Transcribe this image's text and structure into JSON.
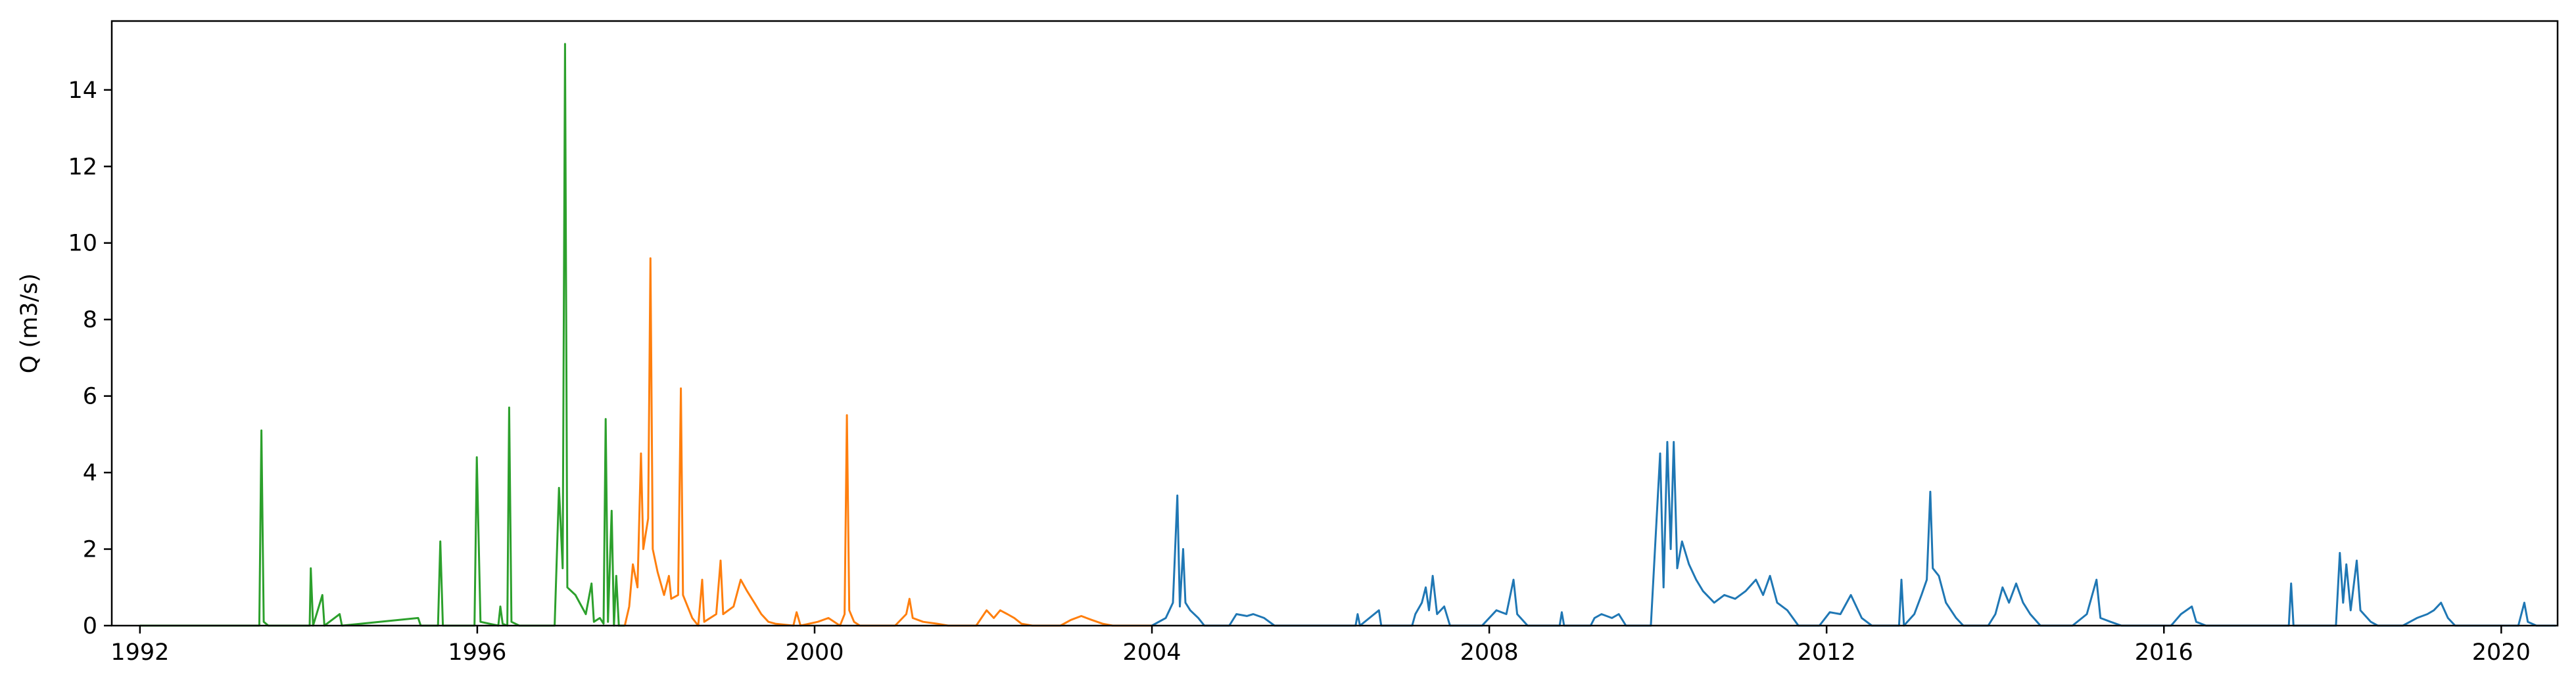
{
  "chart_data": {
    "type": "line",
    "title": "",
    "xlabel": "",
    "ylabel": "Q (m3/s)",
    "xlim": [
      "1991-09-01",
      "2020-09-01"
    ],
    "ylim": [
      0,
      15.8
    ],
    "x_ticks": [
      "1992",
      "1996",
      "2000",
      "2004",
      "2008",
      "2012",
      "2016",
      "2020"
    ],
    "y_ticks": [
      "0",
      "2",
      "4",
      "6",
      "8",
      "10",
      "12",
      "14"
    ],
    "y_tick_values": [
      0,
      2,
      4,
      6,
      8,
      10,
      12,
      14
    ],
    "grid": false,
    "legend": "none",
    "series": [
      {
        "color": "#2ca02c",
        "points": [
          [
            "1992-01-01",
            0.0
          ],
          [
            "1993-06-01",
            0.0
          ],
          [
            "1993-06-10",
            5.1
          ],
          [
            "1993-06-20",
            0.1
          ],
          [
            "1993-07-10",
            0.0
          ],
          [
            "1994-01-05",
            0.0
          ],
          [
            "1994-01-10",
            1.5
          ],
          [
            "1994-01-20",
            0.0
          ],
          [
            "1994-03-01",
            0.8
          ],
          [
            "1994-03-10",
            0.0
          ],
          [
            "1994-05-15",
            0.3
          ],
          [
            "1994-05-25",
            0.0
          ],
          [
            "1995-04-20",
            0.2
          ],
          [
            "1995-05-01",
            0.0
          ],
          [
            "1995-07-15",
            0.0
          ],
          [
            "1995-07-25",
            2.2
          ],
          [
            "1995-08-05",
            0.0
          ],
          [
            "1995-12-20",
            0.0
          ],
          [
            "1995-12-30",
            4.4
          ],
          [
            "1996-01-15",
            0.1
          ],
          [
            "1996-04-01",
            0.0
          ],
          [
            "1996-04-10",
            0.5
          ],
          [
            "1996-04-20",
            0.05
          ],
          [
            "1996-05-10",
            0.0
          ],
          [
            "1996-05-18",
            5.7
          ],
          [
            "1996-05-28",
            0.1
          ],
          [
            "1996-07-01",
            0.0
          ],
          [
            "1996-12-01",
            0.0
          ],
          [
            "1996-12-20",
            3.6
          ],
          [
            "1997-01-05",
            1.5
          ],
          [
            "1997-01-15",
            15.2
          ],
          [
            "1997-01-25",
            1.0
          ],
          [
            "1997-03-01",
            0.8
          ],
          [
            "1997-04-15",
            0.3
          ],
          [
            "1997-05-10",
            1.1
          ],
          [
            "1997-05-20",
            0.1
          ],
          [
            "1997-06-15",
            0.2
          ],
          [
            "1997-07-01",
            0.05
          ],
          [
            "1997-07-10",
            5.4
          ],
          [
            "1997-07-20",
            0.1
          ],
          [
            "1997-08-05",
            3.0
          ],
          [
            "1997-08-15",
            0.0
          ],
          [
            "1997-08-25",
            1.3
          ],
          [
            "1997-09-05",
            0.0
          ],
          [
            "1997-10-01",
            0.0
          ]
        ]
      },
      {
        "color": "#ff7f0e",
        "points": [
          [
            "1997-10-01",
            0.0
          ],
          [
            "1997-10-20",
            0.5
          ],
          [
            "1997-11-05",
            1.6
          ],
          [
            "1997-11-25",
            1.0
          ],
          [
            "1997-12-10",
            4.5
          ],
          [
            "1997-12-20",
            2.0
          ],
          [
            "1998-01-10",
            2.8
          ],
          [
            "1998-01-20",
            9.6
          ],
          [
            "1998-01-30",
            2.0
          ],
          [
            "1998-02-20",
            1.4
          ],
          [
            "1998-03-20",
            0.8
          ],
          [
            "1998-04-10",
            1.3
          ],
          [
            "1998-04-20",
            0.7
          ],
          [
            "1998-05-20",
            0.8
          ],
          [
            "1998-06-01",
            6.2
          ],
          [
            "1998-06-10",
            0.8
          ],
          [
            "1998-07-20",
            0.2
          ],
          [
            "1998-08-15",
            0.0
          ],
          [
            "1998-09-01",
            1.2
          ],
          [
            "1998-09-10",
            0.1
          ],
          [
            "1998-11-01",
            0.3
          ],
          [
            "1998-11-20",
            1.7
          ],
          [
            "1998-12-01",
            0.3
          ],
          [
            "1999-01-15",
            0.5
          ],
          [
            "1999-02-15",
            1.2
          ],
          [
            "1999-03-15",
            0.9
          ],
          [
            "1999-04-15",
            0.6
          ],
          [
            "1999-05-15",
            0.3
          ],
          [
            "1999-06-15",
            0.1
          ],
          [
            "1999-07-15",
            0.05
          ],
          [
            "1999-10-01",
            0.0
          ],
          [
            "1999-10-15",
            0.35
          ],
          [
            "1999-11-01",
            0.0
          ],
          [
            "2000-01-15",
            0.1
          ],
          [
            "2000-03-01",
            0.2
          ],
          [
            "2000-04-20",
            0.0
          ],
          [
            "2000-05-10",
            0.3
          ],
          [
            "2000-05-20",
            5.5
          ],
          [
            "2000-05-30",
            0.4
          ],
          [
            "2000-06-20",
            0.1
          ],
          [
            "2000-07-15",
            0.0
          ],
          [
            "2000-12-15",
            0.0
          ],
          [
            "2001-02-01",
            0.3
          ],
          [
            "2001-02-15",
            0.7
          ],
          [
            "2001-03-01",
            0.2
          ],
          [
            "2001-04-15",
            0.1
          ],
          [
            "2001-06-15",
            0.05
          ],
          [
            "2001-08-01",
            0.0
          ],
          [
            "2001-12-01",
            0.0
          ],
          [
            "2002-01-15",
            0.4
          ],
          [
            "2002-02-15",
            0.2
          ],
          [
            "2002-03-15",
            0.4
          ],
          [
            "2002-04-15",
            0.3
          ],
          [
            "2002-05-15",
            0.2
          ],
          [
            "2002-06-15",
            0.05
          ],
          [
            "2002-08-01",
            0.0
          ],
          [
            "2002-12-01",
            0.0
          ],
          [
            "2003-01-15",
            0.15
          ],
          [
            "2003-03-01",
            0.25
          ],
          [
            "2003-04-15",
            0.15
          ],
          [
            "2003-06-01",
            0.05
          ],
          [
            "2003-07-15",
            0.0
          ],
          [
            "2004-01-01",
            0.0
          ]
        ]
      },
      {
        "color": "#1f77b4",
        "points": [
          [
            "2004-01-01",
            0.0
          ],
          [
            "2004-03-01",
            0.2
          ],
          [
            "2004-04-01",
            0.6
          ],
          [
            "2004-04-20",
            3.4
          ],
          [
            "2004-05-01",
            0.5
          ],
          [
            "2004-05-15",
            2.0
          ],
          [
            "2004-05-25",
            0.6
          ],
          [
            "2004-06-15",
            0.4
          ],
          [
            "2004-07-20",
            0.2
          ],
          [
            "2004-08-15",
            0.0
          ],
          [
            "2004-12-01",
            0.0
          ],
          [
            "2005-01-01",
            0.3
          ],
          [
            "2005-02-15",
            0.25
          ],
          [
            "2005-03-15",
            0.3
          ],
          [
            "2005-05-01",
            0.2
          ],
          [
            "2005-06-15",
            0.0
          ],
          [
            "2006-06-01",
            0.0
          ],
          [
            "2006-06-10",
            0.3
          ],
          [
            "2006-06-20",
            0.0
          ],
          [
            "2006-09-10",
            0.4
          ],
          [
            "2006-09-20",
            0.0
          ],
          [
            "2007-02-01",
            0.0
          ],
          [
            "2007-02-15",
            0.3
          ],
          [
            "2007-03-15",
            0.6
          ],
          [
            "2007-04-01",
            1.0
          ],
          [
            "2007-04-15",
            0.4
          ],
          [
            "2007-05-01",
            1.3
          ],
          [
            "2007-05-20",
            0.3
          ],
          [
            "2007-06-20",
            0.5
          ],
          [
            "2007-07-15",
            0.0
          ],
          [
            "2007-12-01",
            0.0
          ],
          [
            "2008-02-01",
            0.4
          ],
          [
            "2008-03-15",
            0.3
          ],
          [
            "2008-04-15",
            1.2
          ],
          [
            "2008-05-01",
            0.3
          ],
          [
            "2008-06-15",
            0.0
          ],
          [
            "2008-11-01",
            0.0
          ],
          [
            "2008-11-10",
            0.35
          ],
          [
            "2008-11-20",
            0.0
          ],
          [
            "2009-03-15",
            0.0
          ],
          [
            "2009-04-01",
            0.2
          ],
          [
            "2009-05-01",
            0.3
          ],
          [
            "2009-06-15",
            0.2
          ],
          [
            "2009-07-15",
            0.3
          ],
          [
            "2009-08-15",
            0.0
          ],
          [
            "2009-12-01",
            0.0
          ],
          [
            "2010-01-10",
            4.5
          ],
          [
            "2010-01-25",
            1.0
          ],
          [
            "2010-02-10",
            4.8
          ],
          [
            "2010-02-25",
            2.0
          ],
          [
            "2010-03-10",
            4.8
          ],
          [
            "2010-03-25",
            1.5
          ],
          [
            "2010-04-15",
            2.2
          ],
          [
            "2010-05-15",
            1.6
          ],
          [
            "2010-06-15",
            1.2
          ],
          [
            "2010-07-15",
            0.9
          ],
          [
            "2010-09-01",
            0.6
          ],
          [
            "2010-10-15",
            0.8
          ],
          [
            "2010-12-01",
            0.7
          ],
          [
            "2011-01-15",
            0.9
          ],
          [
            "2011-03-01",
            1.2
          ],
          [
            "2011-04-01",
            0.8
          ],
          [
            "2011-05-01",
            1.3
          ],
          [
            "2011-06-01",
            0.6
          ],
          [
            "2011-07-15",
            0.4
          ],
          [
            "2011-09-01",
            0.0
          ],
          [
            "2011-12-01",
            0.0
          ],
          [
            "2012-01-15",
            0.35
          ],
          [
            "2012-03-01",
            0.3
          ],
          [
            "2012-04-15",
            0.8
          ],
          [
            "2012-06-01",
            0.2
          ],
          [
            "2012-07-15",
            0.0
          ],
          [
            "2012-11-10",
            0.0
          ],
          [
            "2012-11-20",
            1.2
          ],
          [
            "2012-12-01",
            0.0
          ],
          [
            "2013-01-15",
            0.3
          ],
          [
            "2013-02-15",
            0.8
          ],
          [
            "2013-03-10",
            1.2
          ],
          [
            "2013-03-25",
            3.5
          ],
          [
            "2013-04-05",
            1.5
          ],
          [
            "2013-05-01",
            1.3
          ],
          [
            "2013-06-01",
            0.6
          ],
          [
            "2013-07-15",
            0.2
          ],
          [
            "2013-08-15",
            0.0
          ],
          [
            "2013-12-01",
            0.0
          ],
          [
            "2014-01-01",
            0.3
          ],
          [
            "2014-02-01",
            1.0
          ],
          [
            "2014-03-01",
            0.6
          ],
          [
            "2014-04-01",
            1.1
          ],
          [
            "2014-05-01",
            0.6
          ],
          [
            "2014-06-01",
            0.3
          ],
          [
            "2014-07-15",
            0.0
          ],
          [
            "2014-12-01",
            0.0
          ],
          [
            "2015-02-01",
            0.3
          ],
          [
            "2015-03-15",
            1.2
          ],
          [
            "2015-04-01",
            0.2
          ],
          [
            "2015-05-15",
            0.1
          ],
          [
            "2015-07-01",
            0.0
          ],
          [
            "2016-02-01",
            0.0
          ],
          [
            "2016-03-15",
            0.3
          ],
          [
            "2016-05-01",
            0.5
          ],
          [
            "2016-05-20",
            0.1
          ],
          [
            "2016-07-01",
            0.0
          ],
          [
            "2017-06-25",
            0.0
          ],
          [
            "2017-07-05",
            1.1
          ],
          [
            "2017-07-15",
            0.0
          ],
          [
            "2018-01-15",
            0.0
          ],
          [
            "2018-02-01",
            1.9
          ],
          [
            "2018-02-15",
            0.6
          ],
          [
            "2018-03-01",
            1.6
          ],
          [
            "2018-03-20",
            0.4
          ],
          [
            "2018-04-15",
            1.7
          ],
          [
            "2018-05-01",
            0.4
          ],
          [
            "2018-06-15",
            0.1
          ],
          [
            "2018-07-15",
            0.0
          ],
          [
            "2018-11-01",
            0.0
          ],
          [
            "2019-01-01",
            0.2
          ],
          [
            "2019-02-15",
            0.3
          ],
          [
            "2019-03-15",
            0.4
          ],
          [
            "2019-04-15",
            0.6
          ],
          [
            "2019-05-15",
            0.2
          ],
          [
            "2019-06-15",
            0.0
          ],
          [
            "2020-03-15",
            0.0
          ],
          [
            "2020-04-10",
            0.6
          ],
          [
            "2020-04-25",
            0.1
          ],
          [
            "2020-06-01",
            0.0
          ],
          [
            "2020-08-25",
            0.0
          ]
        ]
      }
    ]
  }
}
